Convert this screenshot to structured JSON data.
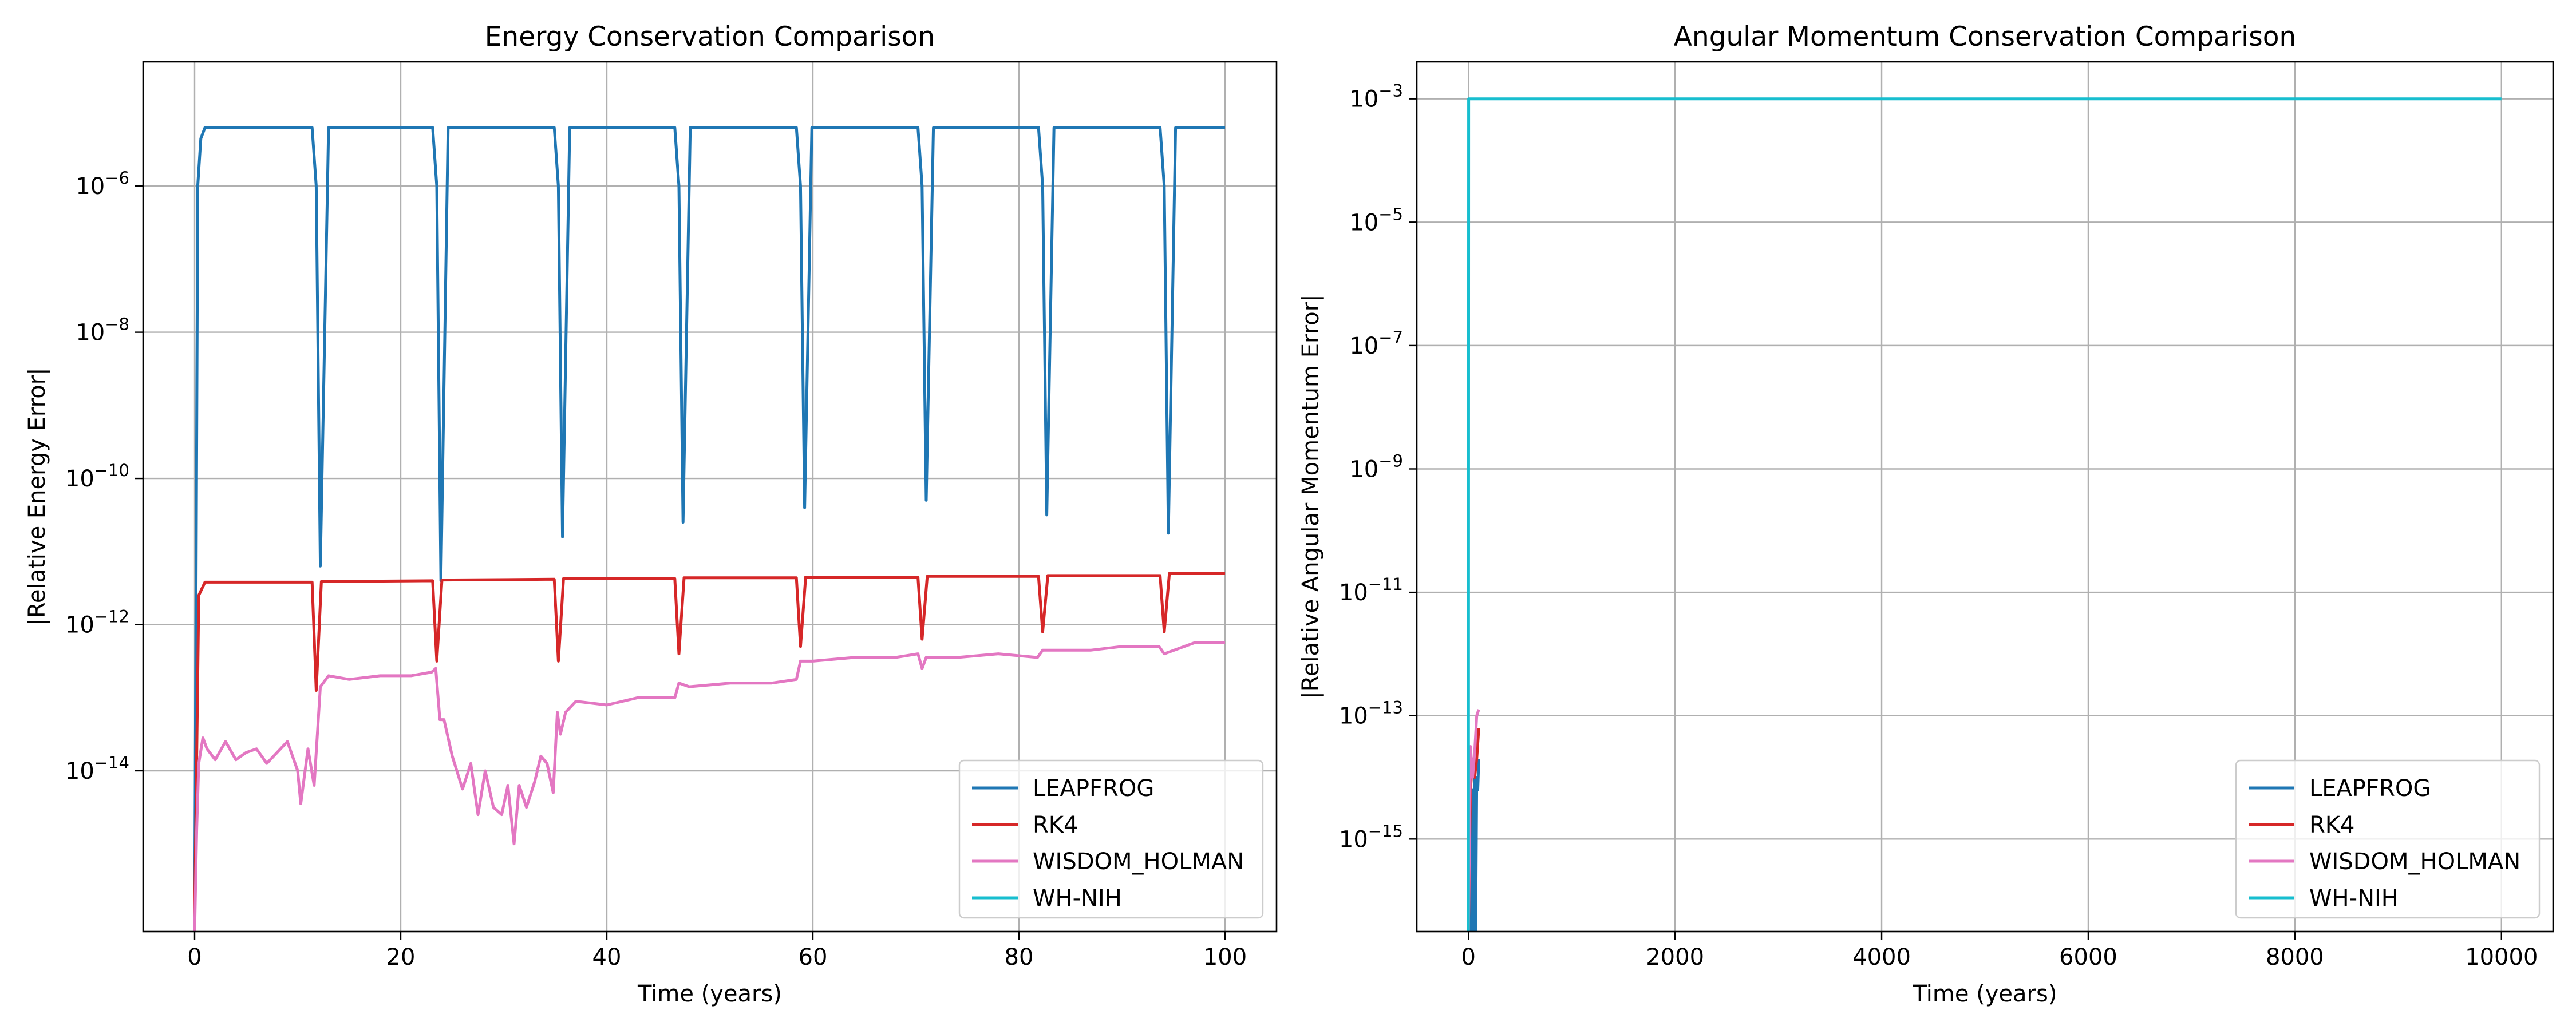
{
  "chart_data": [
    {
      "type": "line",
      "title": "Energy Conservation Comparison",
      "xlabel": "Time (years)",
      "ylabel": "|Relative Energy Error|",
      "yscale": "log",
      "xlim": [
        -5,
        105
      ],
      "ylim_log10": [
        -16.2,
        -4.3
      ],
      "grid": true,
      "legend_position": "lower-right",
      "x_ticks": [
        0,
        20,
        40,
        60,
        80,
        100
      ],
      "x_tick_labels": [
        "0",
        "20",
        "40",
        "60",
        "80",
        "100"
      ],
      "y_ticks_log10": [
        -14,
        -12,
        -10,
        -8,
        -6
      ],
      "y_tick_labels": [
        {
          "base": "10",
          "exp": "−14"
        },
        {
          "base": "10",
          "exp": "−12"
        },
        {
          "base": "10",
          "exp": "−10"
        },
        {
          "base": "10",
          "exp": "−8"
        },
        {
          "base": "10",
          "exp": "−6"
        }
      ],
      "series": [
        {
          "name": "LEAPFROG",
          "color": "#1f77b4",
          "x": [
            0,
            0.3,
            0.6,
            1.0,
            11.4,
            11.8,
            12.2,
            13.0,
            23.1,
            23.5,
            23.9,
            24.6,
            34.9,
            35.3,
            35.7,
            36.4,
            46.6,
            47.0,
            47.4,
            48.1,
            58.4,
            58.8,
            59.2,
            59.9,
            70.2,
            70.6,
            71.0,
            71.7,
            81.9,
            82.3,
            82.7,
            83.4,
            93.7,
            94.1,
            94.5,
            95.2,
            100
          ],
          "y_log10": [
            -16.2,
            -6.0,
            -5.35,
            -5.2,
            -5.2,
            -6.0,
            -11.2,
            -5.2,
            -5.2,
            -6.0,
            -11.4,
            -5.2,
            -5.2,
            -6.0,
            -10.8,
            -5.2,
            -5.2,
            -6.0,
            -10.6,
            -5.2,
            -5.2,
            -6.0,
            -10.4,
            -5.2,
            -5.2,
            -6.0,
            -10.3,
            -5.2,
            -5.2,
            -6.0,
            -10.5,
            -5.2,
            -5.2,
            -6.0,
            -10.75,
            -5.2,
            -5.2
          ]
        },
        {
          "name": "RK4",
          "color": "#d62728",
          "x": [
            0,
            0.4,
            1.0,
            11.4,
            11.8,
            12.3,
            23.1,
            23.5,
            24.0,
            34.9,
            35.3,
            35.8,
            46.6,
            47.0,
            47.5,
            58.4,
            58.8,
            59.3,
            70.2,
            70.6,
            71.1,
            81.9,
            82.3,
            82.8,
            93.7,
            94.1,
            94.6,
            100
          ],
          "y_log10": [
            -16.0,
            -11.6,
            -11.42,
            -11.42,
            -12.9,
            -11.41,
            -11.4,
            -12.5,
            -11.39,
            -11.38,
            -12.5,
            -11.37,
            -11.37,
            -12.4,
            -11.36,
            -11.36,
            -12.3,
            -11.35,
            -11.35,
            -12.2,
            -11.34,
            -11.34,
            -12.1,
            -11.33,
            -11.33,
            -12.1,
            -11.3,
            -11.3
          ]
        },
        {
          "name": "WISDOM_HOLMAN",
          "color": "#e377c2",
          "x": [
            0,
            0.2,
            0.4,
            0.8,
            1.2,
            2,
            3,
            4,
            5,
            6,
            7,
            8,
            9,
            10,
            10.3,
            11,
            11.6,
            12.2,
            13,
            15,
            18,
            21,
            23.0,
            23.4,
            23.8,
            24.2,
            25,
            26,
            26.8,
            27.5,
            28.2,
            29,
            29.8,
            30.4,
            31,
            31.5,
            32.2,
            33,
            33.6,
            34.2,
            34.8,
            35.2,
            35.5,
            36,
            37,
            40,
            43,
            46.6,
            47.0,
            48,
            52,
            56,
            58.4,
            58.8,
            60,
            64,
            68,
            70.2,
            70.6,
            71,
            74,
            78,
            81.8,
            82.3,
            84,
            87,
            90,
            93.6,
            94.1,
            97,
            100
          ],
          "y_log10": [
            -16.2,
            -14.8,
            -13.9,
            -13.55,
            -13.7,
            -13.85,
            -13.6,
            -13.85,
            -13.75,
            -13.7,
            -13.9,
            -13.75,
            -13.6,
            -14.0,
            -14.45,
            -13.7,
            -14.2,
            -12.85,
            -12.7,
            -12.75,
            -12.7,
            -12.7,
            -12.65,
            -12.6,
            -13.3,
            -13.3,
            -13.8,
            -14.25,
            -13.9,
            -14.6,
            -14.0,
            -14.5,
            -14.6,
            -14.2,
            -15.0,
            -14.2,
            -14.5,
            -14.15,
            -13.8,
            -13.9,
            -14.3,
            -13.2,
            -13.5,
            -13.2,
            -13.05,
            -13.1,
            -13.0,
            -13.0,
            -12.8,
            -12.85,
            -12.8,
            -12.8,
            -12.75,
            -12.5,
            -12.5,
            -12.45,
            -12.45,
            -12.4,
            -12.6,
            -12.45,
            -12.45,
            -12.4,
            -12.45,
            -12.35,
            -12.35,
            -12.35,
            -12.3,
            -12.3,
            -12.4,
            -12.25,
            -12.25
          ]
        },
        {
          "name": "WH-NIH",
          "color": "#17becf",
          "x": [],
          "y_log10": []
        }
      ]
    },
    {
      "type": "line",
      "title": "Angular Momentum Conservation Comparison",
      "xlabel": "Time (years)",
      "ylabel": "|Relative Angular Momentum Error|",
      "yscale": "log",
      "xlim": [
        -500,
        10500
      ],
      "ylim_log10": [
        -16.5,
        -2.4
      ],
      "grid": true,
      "legend_position": "lower-right",
      "x_ticks": [
        0,
        2000,
        4000,
        6000,
        8000,
        10000
      ],
      "x_tick_labels": [
        "0",
        "2000",
        "4000",
        "6000",
        "8000",
        "10000"
      ],
      "y_ticks_log10": [
        -15,
        -13,
        -11,
        -9,
        -7,
        -5,
        -3
      ],
      "y_tick_labels": [
        {
          "base": "10",
          "exp": "−15"
        },
        {
          "base": "10",
          "exp": "−13"
        },
        {
          "base": "10",
          "exp": "−11"
        },
        {
          "base": "10",
          "exp": "−9"
        },
        {
          "base": "10",
          "exp": "−7"
        },
        {
          "base": "10",
          "exp": "−5"
        },
        {
          "base": "10",
          "exp": "−3"
        }
      ],
      "series": [
        {
          "name": "LEAPFROG",
          "color": "#1f77b4",
          "x": [
            0,
            10,
            15,
            20,
            30,
            40,
            50,
            60,
            70,
            80,
            90,
            100
          ],
          "y_log10": [
            -16.5,
            -15.2,
            -16.5,
            -14.8,
            -16.5,
            -14.2,
            -16.5,
            -13.6,
            -16.5,
            -14.0,
            -14.2,
            -13.7
          ]
        },
        {
          "name": "RK4",
          "color": "#d62728",
          "x": [
            0,
            20,
            40,
            60,
            80,
            100
          ],
          "y_log10": [
            -16.5,
            -14.2,
            -13.7,
            -14.0,
            -13.7,
            -13.2
          ]
        },
        {
          "name": "WISDOM_HOLMAN",
          "color": "#e377c2",
          "x": [
            0,
            20,
            40,
            60,
            80,
            100
          ],
          "y_log10": [
            -16.5,
            -13.5,
            -14.0,
            -13.6,
            -13.0,
            -12.9
          ]
        },
        {
          "name": "WH-NIH",
          "color": "#17becf",
          "x": [
            0,
            2,
            10000
          ],
          "y_log10": [
            -16.5,
            -3.0,
            -3.0
          ]
        }
      ]
    }
  ]
}
